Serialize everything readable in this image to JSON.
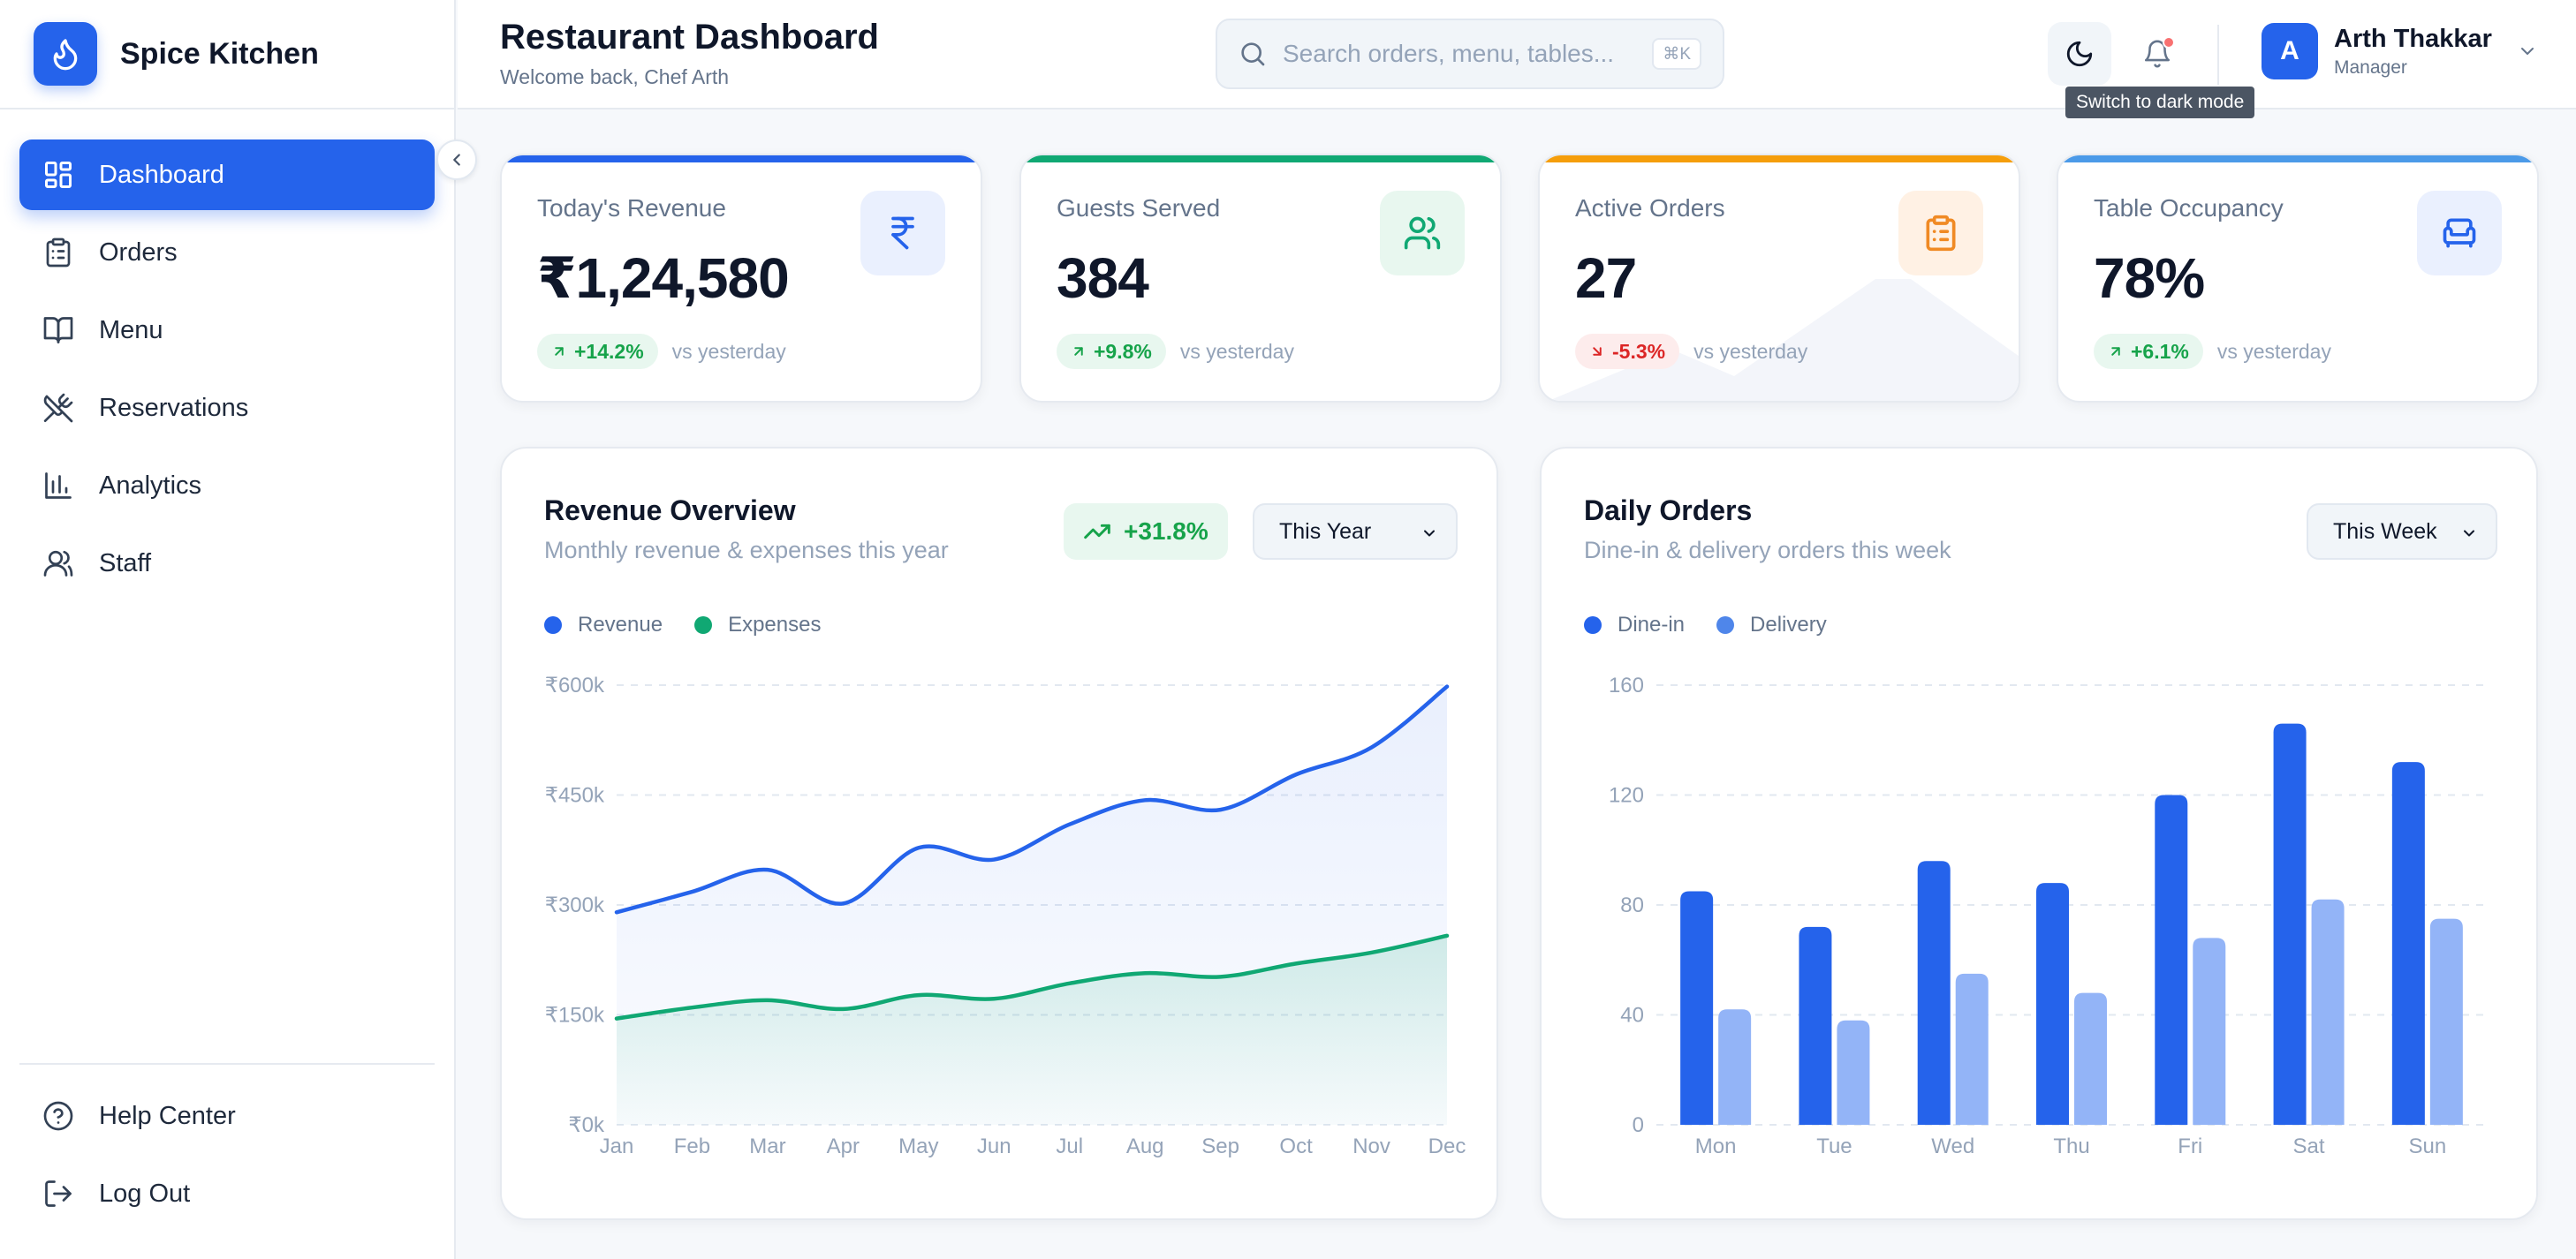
{
  "brand": {
    "name": "Spice Kitchen",
    "logo_icon": "flame-icon"
  },
  "sidebar": {
    "items": [
      {
        "label": "Dashboard",
        "icon": "dashboard-grid-icon",
        "active": true
      },
      {
        "label": "Orders",
        "icon": "clipboard-icon"
      },
      {
        "label": "Menu",
        "icon": "book-open-icon"
      },
      {
        "label": "Reservations",
        "icon": "utensils-crossed-icon"
      },
      {
        "label": "Analytics",
        "icon": "bar-chart-icon"
      },
      {
        "label": "Staff",
        "icon": "users-icon"
      }
    ],
    "bottom": [
      {
        "label": "Help Center",
        "icon": "help-circle-icon"
      },
      {
        "label": "Log Out",
        "icon": "log-out-icon"
      }
    ]
  },
  "header": {
    "title": "Restaurant Dashboard",
    "subtitle": "Welcome back, Chef Arth",
    "search_placeholder": "Search orders, menu, tables...",
    "search_shortcut": "⌘K",
    "theme_tooltip": "Switch to dark mode",
    "user": {
      "initial": "A",
      "name": "Arth Thakkar",
      "role": "Manager"
    }
  },
  "stats": [
    {
      "label": "Today's Revenue",
      "value": "₹1,24,580",
      "change": "+14.2%",
      "direction": "up",
      "compare": "vs yesterday",
      "icon": "rupee-icon",
      "accent": "#2563eb",
      "icon_bg": "#eaf0fe"
    },
    {
      "label": "Guests Served",
      "value": "384",
      "change": "+9.8%",
      "direction": "up",
      "compare": "vs yesterday",
      "icon": "users-icon",
      "accent": "#16a34a",
      "icon_bg": "#e8f7ef"
    },
    {
      "label": "Active Orders",
      "value": "27",
      "change": "-5.3%",
      "direction": "down",
      "compare": "vs yesterday",
      "icon": "clipboard-list-icon",
      "accent": "#f59e0b",
      "icon_bg": "#fff1e4"
    },
    {
      "label": "Table Occupancy",
      "value": "78%",
      "change": "+6.1%",
      "direction": "up",
      "compare": "vs yesterday",
      "icon": "armchair-icon",
      "accent": "#3b82f6",
      "icon_bg": "#eaf0fe"
    }
  ],
  "revenue_card": {
    "title": "Revenue Overview",
    "subtitle": "Monthly revenue & expenses this year",
    "trend": "+31.8%",
    "period": "This Year"
  },
  "orders_card": {
    "title": "Daily Orders",
    "subtitle": "Dine-in & delivery orders this week",
    "period": "This Week"
  },
  "colors": {
    "primary": "#2563eb",
    "success": "#16a34a",
    "danger": "#dc2626",
    "expenses": "#10a873",
    "delivery": "#93b4f7"
  },
  "chart_data": [
    {
      "type": "area",
      "categories": [
        "Jan",
        "Feb",
        "Mar",
        "Apr",
        "May",
        "Jun",
        "Jul",
        "Aug",
        "Sep",
        "Oct",
        "Nov",
        "Dec"
      ],
      "series": [
        {
          "name": "Revenue",
          "color": "#2563eb",
          "values": [
            290000,
            318000,
            348000,
            302000,
            378000,
            362000,
            410000,
            443000,
            430000,
            478000,
            515000,
            598000
          ]
        },
        {
          "name": "Expenses",
          "color": "#10a873",
          "values": [
            145000,
            160000,
            170000,
            158000,
            177000,
            172000,
            193000,
            207000,
            202000,
            220000,
            235000,
            258000
          ]
        }
      ],
      "yticks": [
        "₹0k",
        "₹150k",
        "₹300k",
        "₹450k",
        "₹600k"
      ],
      "ylim": [
        0,
        600000
      ],
      "legend": "top-left",
      "grid": true
    },
    {
      "type": "bar",
      "categories": [
        "Mon",
        "Tue",
        "Wed",
        "Thu",
        "Fri",
        "Sat",
        "Sun"
      ],
      "series": [
        {
          "name": "Dine-in",
          "color": "#2563eb",
          "values": [
            85,
            72,
            96,
            88,
            120,
            146,
            132
          ]
        },
        {
          "name": "Delivery",
          "color": "#93b4f7",
          "values": [
            42,
            38,
            55,
            48,
            68,
            82,
            75
          ]
        }
      ],
      "yticks": [
        "0",
        "40",
        "80",
        "120",
        "160"
      ],
      "ylim": [
        0,
        160
      ],
      "legend": "top-left",
      "grid": true
    }
  ]
}
